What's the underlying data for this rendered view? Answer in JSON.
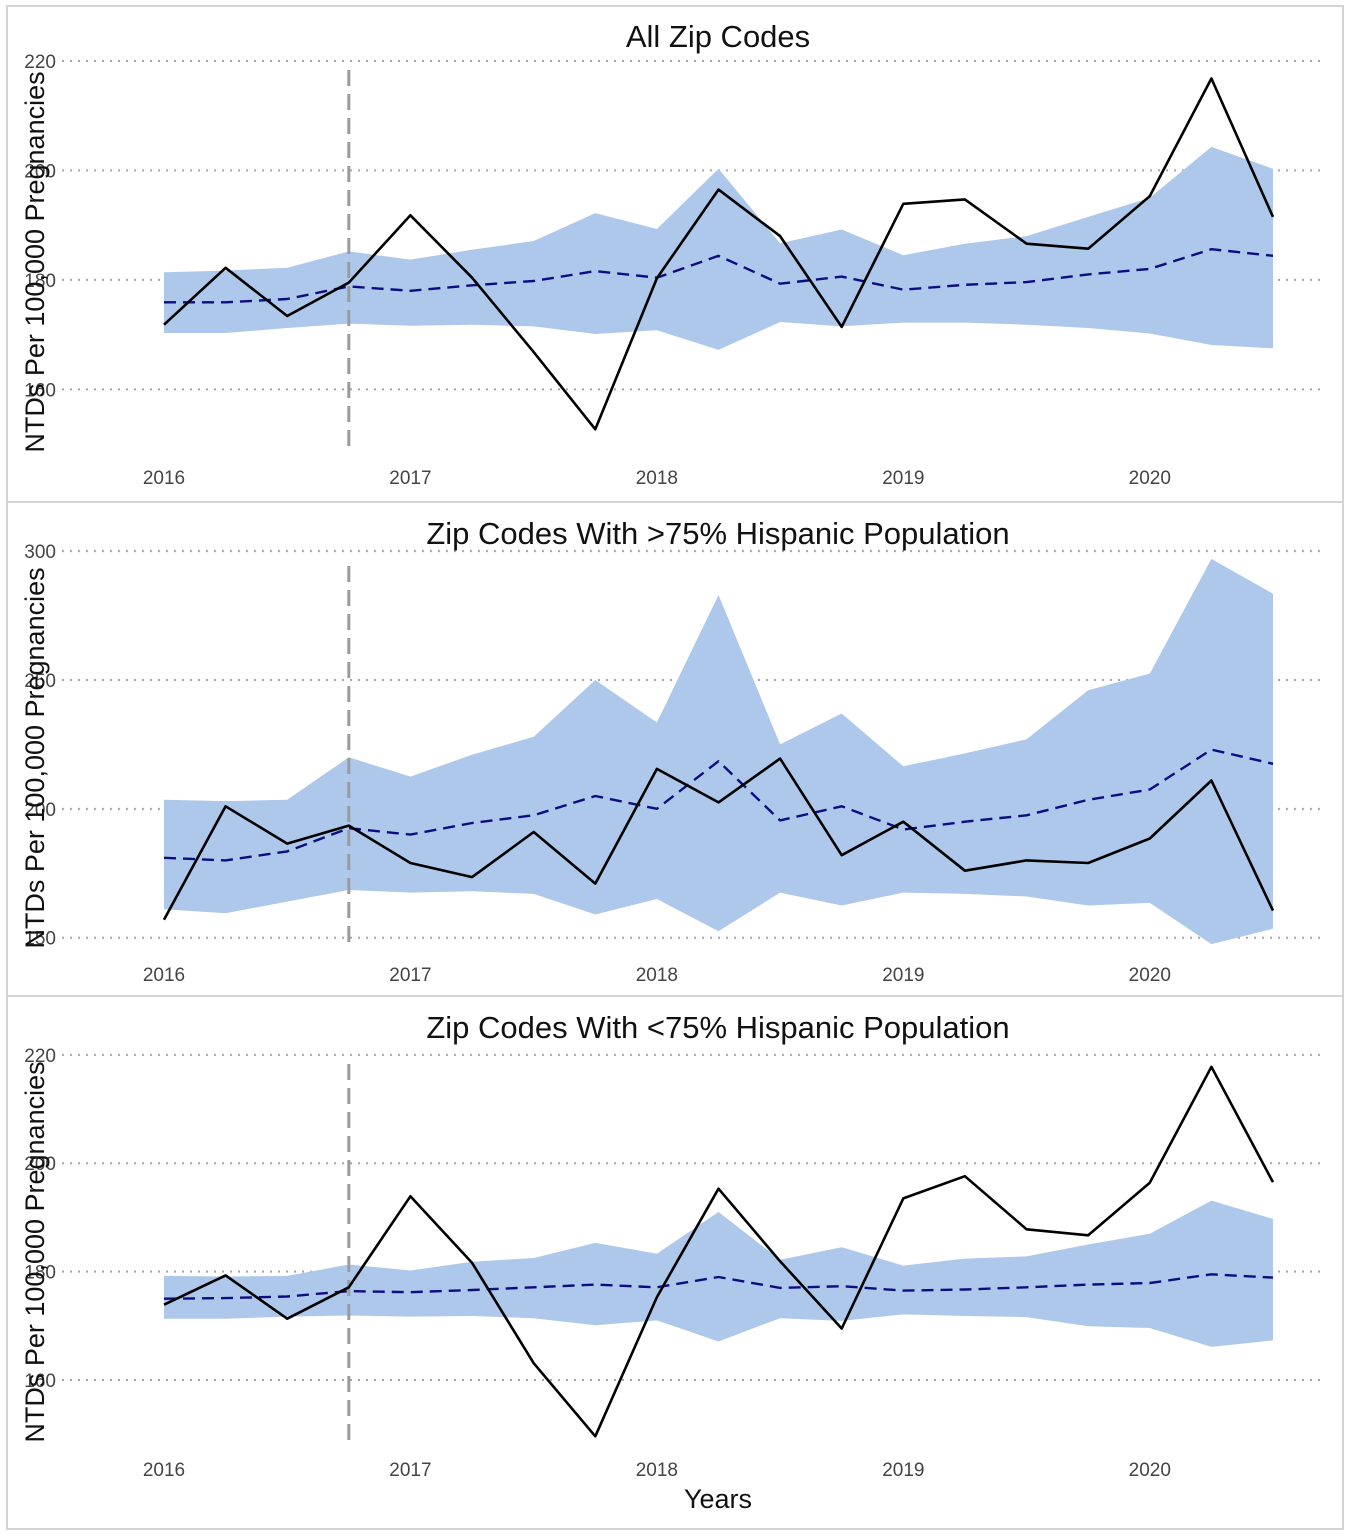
{
  "chart_data": [
    {
      "type": "line",
      "title": "All Zip Codes",
      "ylabel": "NTDs Per 100,000 Pregnancies",
      "xlabel": "",
      "xlim": [
        2016,
        2020.5
      ],
      "ylim": [
        148,
        222
      ],
      "y_ticks": [
        160,
        180,
        200,
        220
      ],
      "x_ticks": [
        2016,
        2017,
        2018,
        2019,
        2020
      ],
      "grid": "horizontal dotted",
      "vline_x": 2016.75,
      "x": [
        2016,
        2016.25,
        2016.5,
        2016.75,
        2017,
        2017.25,
        2017.5,
        2017.75,
        2018,
        2018.25,
        2018.5,
        2018.75,
        2019,
        2019.25,
        2019.5,
        2019.75,
        2020,
        2020.25,
        2020.5
      ],
      "series": [
        {
          "role": "observed",
          "style": "solid",
          "color": "#000000",
          "values": [
            171.8,
            182.2,
            173.4,
            179.5,
            191.8,
            180.4,
            166.8,
            152.7,
            180.3,
            196.5,
            188.0,
            171.4,
            193.9,
            194.7,
            186.6,
            185.7,
            195.3,
            216.8,
            191.5
          ]
        },
        {
          "role": "expected",
          "style": "dashed",
          "color": "#0d0d80",
          "values": [
            175.9,
            175.9,
            176.5,
            178.8,
            178.0,
            179.0,
            179.8,
            181.6,
            180.4,
            184.4,
            179.3,
            180.6,
            178.2,
            179.1,
            179.6,
            181.0,
            182.0,
            185.6,
            184.4
          ]
        },
        {
          "role": "band_upper",
          "color": "#adc8ea",
          "values": [
            181.4,
            181.7,
            182.2,
            185.2,
            183.7,
            185.5,
            187.1,
            192.2,
            189.3,
            200.3,
            186.7,
            189.2,
            184.5,
            186.6,
            188.0,
            191.5,
            195.0,
            204.3,
            200.3
          ]
        },
        {
          "role": "band_lower",
          "color": "#adc8ea",
          "values": [
            170.3,
            170.3,
            171.2,
            172.0,
            171.6,
            171.8,
            171.5,
            170.1,
            170.8,
            167.2,
            172.3,
            171.5,
            172.2,
            172.2,
            171.8,
            171.2,
            170.2,
            168.1,
            167.5
          ]
        }
      ]
    },
    {
      "type": "line",
      "title": "Zip Codes With >75% Hispanic Population",
      "ylabel": "NTDs Per 100,000 Pregnancies",
      "xlabel": "",
      "xlim": [
        2016,
        2020.5
      ],
      "ylim": [
        146,
        302
      ],
      "y_ticks": [
        150,
        200,
        250,
        300
      ],
      "x_ticks": [
        2016,
        2017,
        2018,
        2019,
        2020
      ],
      "grid": "horizontal dotted",
      "vline_x": 2016.75,
      "x": [
        2016,
        2016.25,
        2016.5,
        2016.75,
        2017,
        2017.25,
        2017.5,
        2017.75,
        2018,
        2018.25,
        2018.5,
        2018.75,
        2019,
        2019.25,
        2019.5,
        2019.75,
        2020,
        2020.25,
        2020.5
      ],
      "series": [
        {
          "role": "observed",
          "style": "solid",
          "color": "#000000",
          "values": [
            157.0,
            201.0,
            186.5,
            193.5,
            179.0,
            173.5,
            191.0,
            171.0,
            215.5,
            202.5,
            219.5,
            182.0,
            195.0,
            176.0,
            180.0,
            179.0,
            188.5,
            211.0,
            160.5
          ]
        },
        {
          "role": "expected",
          "style": "dashed",
          "color": "#0d0d80",
          "values": [
            181.0,
            180.0,
            183.5,
            192.5,
            190.0,
            194.5,
            197.5,
            205.0,
            200.0,
            218.5,
            195.5,
            201.0,
            192.0,
            195.0,
            197.5,
            203.5,
            207.5,
            223.0,
            217.5
          ]
        },
        {
          "role": "band_upper",
          "color": "#adc8ea",
          "values": [
            203.5,
            203.0,
            203.5,
            220.0,
            212.5,
            221.0,
            228.0,
            250.0,
            233.5,
            283.0,
            225.0,
            237.0,
            216.5,
            221.5,
            227.0,
            246.0,
            252.5,
            297.0,
            283.5
          ]
        },
        {
          "role": "band_lower",
          "color": "#adc8ea",
          "values": [
            161.0,
            159.5,
            164.0,
            168.5,
            167.5,
            168.0,
            167.0,
            159.0,
            165.0,
            152.5,
            167.5,
            162.5,
            167.5,
            167.0,
            166.0,
            162.5,
            163.5,
            147.5,
            153.5
          ]
        }
      ]
    },
    {
      "type": "line",
      "title": "Zip Codes With <75% Hispanic Population",
      "ylabel": "NTDs Per 100,000 Pregnancies",
      "xlabel": "Years",
      "xlim": [
        2016,
        2020.5
      ],
      "ylim": [
        148,
        222
      ],
      "y_ticks": [
        160,
        180,
        200,
        220
      ],
      "x_ticks": [
        2016,
        2017,
        2018,
        2019,
        2020
      ],
      "grid": "horizontal dotted",
      "vline_x": 2016.75,
      "x": [
        2016,
        2016.25,
        2016.5,
        2016.75,
        2017,
        2017.25,
        2017.5,
        2017.75,
        2018,
        2018.25,
        2018.5,
        2018.75,
        2019,
        2019.25,
        2019.5,
        2019.75,
        2020,
        2020.25,
        2020.5
      ],
      "series": [
        {
          "role": "observed",
          "style": "solid",
          "color": "#000000",
          "values": [
            173.9,
            179.3,
            171.3,
            177.1,
            193.9,
            181.6,
            163.1,
            149.6,
            175.3,
            195.3,
            181.9,
            169.5,
            193.5,
            197.6,
            187.8,
            186.7,
            196.4,
            217.8,
            196.5
          ]
        },
        {
          "role": "expected",
          "style": "dashed",
          "color": "#0d0d80",
          "values": [
            175.0,
            175.1,
            175.4,
            176.4,
            176.2,
            176.6,
            177.1,
            177.6,
            177.1,
            179.0,
            177.0,
            177.3,
            176.5,
            176.7,
            177.1,
            177.6,
            177.9,
            179.5,
            178.9
          ]
        },
        {
          "role": "band_upper",
          "color": "#adc8ea",
          "values": [
            179.2,
            179.1,
            179.2,
            181.3,
            180.2,
            181.8,
            182.5,
            185.3,
            183.3,
            191.0,
            182.2,
            184.5,
            181.1,
            182.4,
            182.8,
            185.0,
            187.0,
            193.1,
            189.7
          ]
        },
        {
          "role": "band_lower",
          "color": "#adc8ea",
          "values": [
            171.3,
            171.3,
            171.7,
            171.9,
            171.7,
            171.8,
            171.4,
            170.1,
            171.0,
            167.1,
            171.4,
            170.9,
            172.1,
            171.8,
            171.6,
            169.9,
            169.6,
            166.1,
            167.3
          ]
        }
      ]
    }
  ]
}
